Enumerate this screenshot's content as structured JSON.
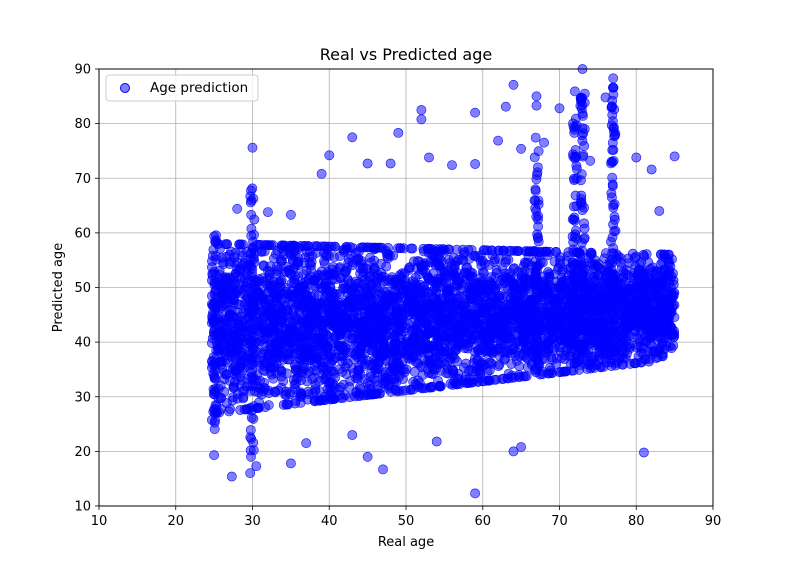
{
  "chart_data": {
    "type": "scatter",
    "title": "Real vs Predicted age",
    "xlabel": "Real age",
    "ylabel": "Predicted age",
    "xlim": [
      10,
      90
    ],
    "ylim": [
      10,
      90
    ],
    "xticks": [
      "10",
      "20",
      "30",
      "40",
      "50",
      "60",
      "70",
      "80",
      "90"
    ],
    "yticks": [
      "10",
      "20",
      "30",
      "40",
      "50",
      "60",
      "70",
      "80",
      "90"
    ],
    "grid": true,
    "legend_position": "top-left",
    "marker_color": "#0000ff",
    "marker_alpha": 0.5,
    "series": [
      {
        "name": "Age prediction",
        "color": "#0000ff",
        "description_density": "dense band of thousands of points; x from 25 to 85, y mostly 27-62",
        "band": {
          "x_min": 25,
          "x_max": 85,
          "y_low_start": 27,
          "y_high_start": 58,
          "y_low_end": 37,
          "y_high_end": 56
        },
        "points": [
          [
            25,
            19.3
          ],
          [
            27.3,
            15.4
          ],
          [
            29.7,
            16
          ],
          [
            29.8,
            19
          ],
          [
            30.5,
            17.3
          ],
          [
            35,
            17.8
          ],
          [
            37,
            21.5
          ],
          [
            43,
            23
          ],
          [
            45,
            19
          ],
          [
            47,
            16.7
          ],
          [
            54,
            21.8
          ],
          [
            59,
            12.3
          ],
          [
            64,
            20
          ],
          [
            65,
            20.8
          ],
          [
            81,
            19.8
          ],
          [
            30,
            75.6
          ],
          [
            40,
            74.2
          ],
          [
            43,
            77.5
          ],
          [
            49,
            78.3
          ],
          [
            52,
            80.8
          ],
          [
            52,
            82.5
          ],
          [
            59,
            82
          ],
          [
            63,
            83.1
          ],
          [
            64,
            87.1
          ],
          [
            67,
            85
          ],
          [
            67,
            83.3
          ],
          [
            70,
            82.8
          ],
          [
            72,
            85.9
          ],
          [
            73,
            90
          ],
          [
            76,
            84.8
          ],
          [
            77,
            88.3
          ],
          [
            77,
            86.6
          ],
          [
            80,
            73.8
          ],
          [
            82,
            71.6
          ],
          [
            85,
            74
          ],
          [
            39,
            70.8
          ],
          [
            45,
            72.7
          ],
          [
            48,
            72.7
          ],
          [
            53,
            73.8
          ],
          [
            56,
            72.4
          ],
          [
            59,
            72.6
          ],
          [
            62,
            76.9
          ],
          [
            65,
            75.4
          ],
          [
            68,
            76.5
          ],
          [
            74,
            73.2
          ],
          [
            28,
            64.4
          ],
          [
            32,
            63.8
          ],
          [
            35,
            63.3
          ],
          [
            83,
            64
          ]
        ]
      }
    ]
  }
}
